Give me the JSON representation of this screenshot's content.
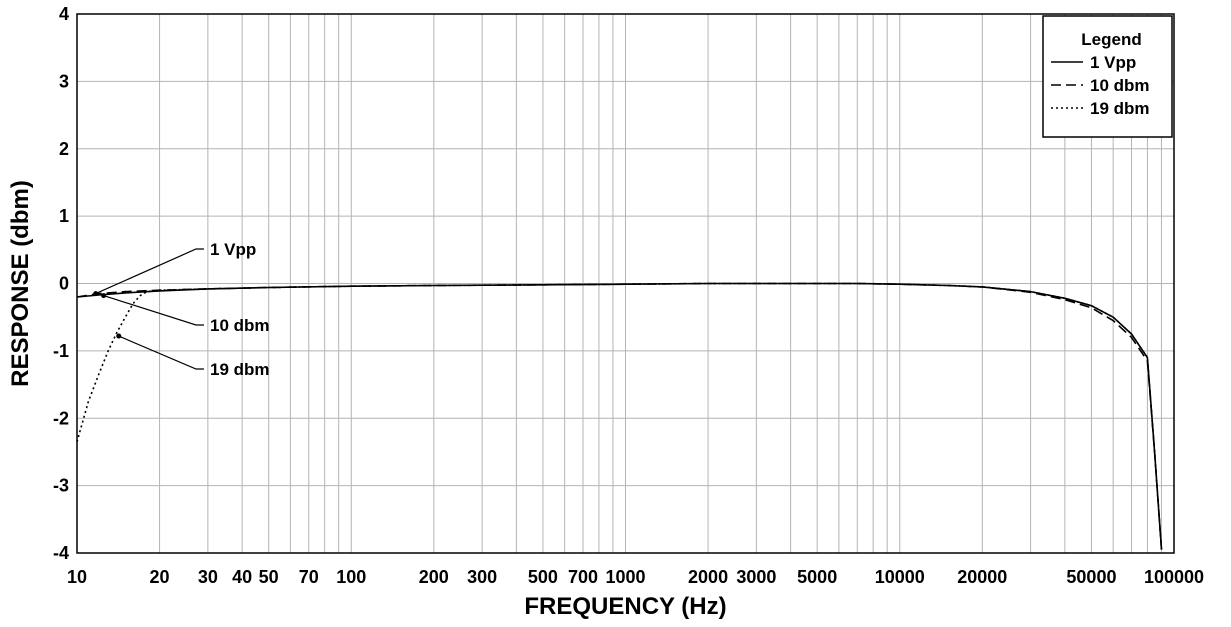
{
  "chart_data": {
    "type": "line",
    "title": "",
    "xlabel": "FREQUENCY (Hz)",
    "ylabel": "RESPONSE (dbm)",
    "xscale": "log",
    "xlim": [
      10,
      100000
    ],
    "ylim": [
      -4,
      4
    ],
    "grid": true,
    "x_ticks": [
      10,
      20,
      30,
      40,
      50,
      70,
      100,
      200,
      300,
      500,
      700,
      1000,
      2000,
      3000,
      5000,
      10000,
      20000,
      50000,
      100000
    ],
    "x_tick_labels": [
      "10",
      "20",
      "30",
      "40",
      "50",
      "70",
      "100",
      "200",
      "300",
      "500",
      "700",
      "1000",
      "2000",
      "3000",
      "5000",
      "10000",
      "20000",
      "50000",
      "100000"
    ],
    "y_ticks": [
      4,
      3,
      2,
      1,
      0,
      -1,
      -2,
      -3,
      -4
    ],
    "y_tick_labels": [
      "4",
      "3",
      "2",
      "1",
      "0",
      "-1",
      "-2",
      "-3",
      "-4"
    ],
    "legend": {
      "title": "Legend",
      "placement": "top-right",
      "entries": [
        "1 Vpp",
        "10 dbm",
        "19 dbm"
      ]
    },
    "series": [
      {
        "name": "1 Vpp",
        "style": "solid",
        "x": [
          10,
          12,
          15,
          20,
          30,
          50,
          100,
          200,
          500,
          1000,
          2000,
          5000,
          7000,
          10000,
          15000,
          20000,
          30000,
          40000,
          50000,
          60000,
          70000,
          80000,
          85000,
          90000
        ],
        "y": [
          -0.2,
          -0.17,
          -0.14,
          -0.11,
          -0.08,
          -0.06,
          -0.04,
          -0.03,
          -0.02,
          -0.01,
          0.0,
          0.0,
          0.0,
          -0.01,
          -0.03,
          -0.05,
          -0.12,
          -0.22,
          -0.33,
          -0.5,
          -0.75,
          -1.1,
          -2.5,
          -3.95
        ]
      },
      {
        "name": "10 dbm",
        "style": "dashed",
        "x": [
          10,
          12,
          15,
          20,
          30,
          50,
          100,
          200,
          500,
          1000,
          2000,
          5000,
          7000,
          10000,
          15000,
          20000,
          30000,
          40000,
          50000,
          60000,
          70000,
          80000,
          85000,
          90000
        ],
        "y": [
          -0.2,
          -0.15,
          -0.12,
          -0.1,
          -0.08,
          -0.06,
          -0.04,
          -0.03,
          -0.02,
          -0.01,
          0.0,
          0.0,
          0.0,
          -0.01,
          -0.03,
          -0.05,
          -0.13,
          -0.24,
          -0.36,
          -0.55,
          -0.8,
          -1.15,
          -2.5,
          -3.95
        ]
      },
      {
        "name": "19 dbm",
        "style": "dotted",
        "x": [
          10,
          11,
          12,
          13,
          14,
          15,
          16,
          17,
          18,
          20,
          30,
          50,
          100,
          200,
          500,
          1000,
          2000,
          5000,
          7000,
          10000,
          15000,
          20000,
          30000,
          40000,
          50000,
          60000,
          70000,
          80000,
          85000,
          90000
        ],
        "y": [
          -2.35,
          -1.75,
          -1.35,
          -1.0,
          -0.72,
          -0.5,
          -0.3,
          -0.18,
          -0.12,
          -0.1,
          -0.08,
          -0.06,
          -0.04,
          -0.03,
          -0.02,
          -0.01,
          0.0,
          0.0,
          0.0,
          -0.01,
          -0.03,
          -0.05,
          -0.12,
          -0.22,
          -0.33,
          -0.5,
          -0.75,
          -1.1,
          -2.5,
          -3.95
        ]
      }
    ],
    "annotations": [
      {
        "text": "1 Vpp",
        "x": 11.7,
        "y": -0.15
      },
      {
        "text": "10 dbm",
        "x": 12.5,
        "y": -0.18
      },
      {
        "text": "19 dbm",
        "x": 14.2,
        "y": -0.78
      }
    ]
  }
}
